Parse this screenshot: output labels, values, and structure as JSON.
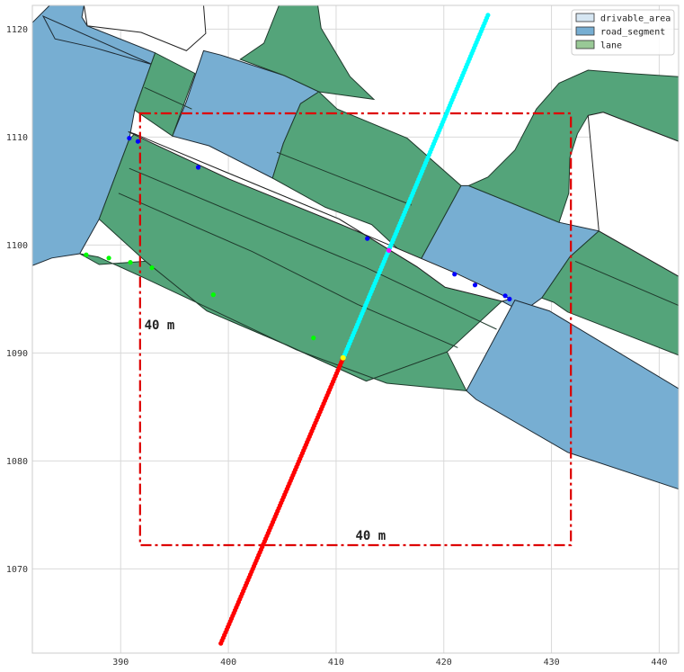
{
  "chart_data": {
    "type": "scatter",
    "title": "",
    "xlabel": "",
    "ylabel": "",
    "xlim": [
      381.8,
      441.8
    ],
    "ylim": [
      1062.2,
      1122.2
    ],
    "grid": true,
    "legend_position": "top-right",
    "x_ticks": [
      390,
      400,
      410,
      420,
      430,
      440
    ],
    "y_ticks": [
      1070,
      1080,
      1090,
      1100,
      1110,
      1120
    ],
    "legend": [
      {
        "label": "drivable_area",
        "color": "#d6e6f2"
      },
      {
        "label": "road_segment",
        "color": "#77aed2"
      },
      {
        "label": "lane",
        "color": "#99c996"
      }
    ],
    "colors": {
      "road_segment": "#77aed2",
      "lane": "#54a47a",
      "lane_edge": "#1f3a2c",
      "box": "#dd0000",
      "future": "#ff0000",
      "past": "#00ffff",
      "current": "#ffff00",
      "blue_points": "#0000ff",
      "green_points": "#00ff00",
      "magenta_points": "#ff00ff"
    },
    "regions": {
      "road_segment": [
        [
          [
            381.8,
            1120.6
          ],
          [
            383.4,
            1122.2
          ],
          [
            386.6,
            1122.2
          ],
          [
            386.4,
            1121.1
          ],
          [
            386.9,
            1120.3
          ],
          [
            393.2,
            1117.8
          ],
          [
            391.3,
            1112.5
          ],
          [
            390.8,
            1109.8
          ],
          [
            388.0,
            1102.4
          ],
          [
            386.2,
            1099.2
          ],
          [
            383.6,
            1098.8
          ],
          [
            381.8,
            1098.1
          ]
        ],
        [
          [
            397.7,
            1118.0
          ],
          [
            399.3,
            1117.6
          ],
          [
            405.2,
            1115.7
          ],
          [
            408.4,
            1114.2
          ],
          [
            406.7,
            1113.1
          ],
          [
            405.1,
            1109.4
          ],
          [
            404.1,
            1106.2
          ],
          [
            398.2,
            1109.2
          ],
          [
            394.8,
            1110.1
          ],
          [
            396.1,
            1113.3
          ]
        ],
        [
          [
            421.6,
            1105.5
          ],
          [
            422.3,
            1105.5
          ],
          [
            430.7,
            1102.1
          ],
          [
            434.4,
            1101.3
          ],
          [
            431.7,
            1098.9
          ],
          [
            429.1,
            1095.1
          ],
          [
            427.3,
            1093.8
          ],
          [
            425.4,
            1094.8
          ],
          [
            420.1,
            1096.1
          ],
          [
            417.5,
            1098.0
          ]
        ],
        [
          [
            426.6,
            1094.9
          ],
          [
            429.8,
            1093.9
          ],
          [
            441.8,
            1086.7
          ],
          [
            441.8,
            1077.4
          ],
          [
            431.5,
            1080.8
          ],
          [
            423.0,
            1085.7
          ],
          [
            422.1,
            1086.5
          ]
        ],
        [
          [
            393.0,
            1116.7
          ],
          [
            387.5,
            1118.3
          ],
          [
            383.9,
            1119.1
          ],
          [
            382.8,
            1121.2
          ]
        ]
      ],
      "lane": [
        [
          [
            391.3,
            1112.5
          ],
          [
            393.2,
            1117.8
          ],
          [
            396.9,
            1115.9
          ],
          [
            394.8,
            1110.1
          ]
        ],
        [
          [
            404.7,
            1122.2
          ],
          [
            408.3,
            1122.2
          ],
          [
            408.6,
            1120.1
          ],
          [
            411.3,
            1115.6
          ],
          [
            413.5,
            1113.5
          ],
          [
            408.4,
            1114.2
          ],
          [
            405.2,
            1115.7
          ],
          [
            401.1,
            1117.2
          ],
          [
            403.3,
            1118.7
          ]
        ],
        [
          [
            408.4,
            1114.2
          ],
          [
            410.1,
            1112.6
          ],
          [
            416.6,
            1109.9
          ],
          [
            421.6,
            1105.5
          ],
          [
            417.5,
            1098.0
          ],
          [
            413.3,
            1101.9
          ],
          [
            409.0,
            1103.5
          ],
          [
            404.1,
            1106.2
          ],
          [
            405.1,
            1109.4
          ],
          [
            406.7,
            1113.1
          ]
        ],
        [
          [
            390.8,
            1109.8
          ],
          [
            391.3,
            1110.3
          ],
          [
            392.7,
            1109.6
          ],
          [
            399.9,
            1106.7
          ],
          [
            410.3,
            1102.4
          ],
          [
            417.5,
            1098.0
          ],
          [
            420.1,
            1096.1
          ],
          [
            425.4,
            1094.8
          ],
          [
            420.3,
            1090.1
          ],
          [
            412.8,
            1087.4
          ],
          [
            405.5,
            1090.7
          ],
          [
            398.0,
            1093.9
          ],
          [
            392.3,
            1098.5
          ],
          [
            388.0,
            1102.4
          ]
        ],
        [
          [
            386.2,
            1099.2
          ],
          [
            388.0,
            1098.2
          ],
          [
            392.3,
            1098.5
          ],
          [
            398.0,
            1093.9
          ],
          [
            405.5,
            1090.7
          ],
          [
            412.8,
            1087.4
          ],
          [
            420.3,
            1090.1
          ],
          [
            422.1,
            1086.5
          ],
          [
            414.7,
            1087.2
          ],
          [
            406.3,
            1090.3
          ],
          [
            398.7,
            1093.9
          ],
          [
            392.1,
            1097.0
          ],
          [
            387.9,
            1098.9
          ]
        ],
        [
          [
            422.3,
            1105.5
          ],
          [
            424.1,
            1106.3
          ],
          [
            426.6,
            1108.8
          ],
          [
            428.6,
            1112.6
          ],
          [
            430.7,
            1115.0
          ],
          [
            433.4,
            1116.2
          ],
          [
            437.2,
            1115.9
          ],
          [
            441.8,
            1115.6
          ],
          [
            441.8,
            1109.6
          ],
          [
            434.8,
            1112.3
          ],
          [
            433.4,
            1112.0
          ],
          [
            432.4,
            1110.3
          ],
          [
            431.7,
            1108.1
          ],
          [
            431.6,
            1104.8
          ],
          [
            430.7,
            1102.1
          ]
        ],
        [
          [
            434.4,
            1101.3
          ],
          [
            441.8,
            1097.1
          ],
          [
            441.8,
            1089.8
          ],
          [
            431.5,
            1093.8
          ],
          [
            430.2,
            1094.7
          ],
          [
            429.1,
            1095.1
          ],
          [
            431.7,
            1098.9
          ]
        ]
      ],
      "white_gaps": [
        [
          [
            390.7,
            1110.5
          ],
          [
            391.3,
            1110.3
          ],
          [
            399.9,
            1106.7
          ],
          [
            410.3,
            1102.4
          ],
          [
            417.5,
            1098.0
          ],
          [
            420.1,
            1096.1
          ],
          [
            425.4,
            1094.8
          ],
          [
            426.2,
            1095.0
          ],
          [
            421.1,
            1097.4
          ],
          [
            410.7,
            1101.8
          ],
          [
            400.1,
            1106.1
          ],
          [
            392.8,
            1109.5
          ]
        ],
        [
          [
            434.4,
            1101.3
          ],
          [
            433.4,
            1112.0
          ],
          [
            434.8,
            1112.3
          ],
          [
            441.8,
            1109.6
          ],
          [
            441.8,
            1097.1
          ]
        ],
        [
          [
            386.6,
            1122.2
          ],
          [
            397.7,
            1122.2
          ],
          [
            397.9,
            1119.6
          ],
          [
            396.1,
            1118.0
          ],
          [
            391.9,
            1119.7
          ],
          [
            386.9,
            1120.3
          ]
        ]
      ],
      "lane_dividers": [
        [
          [
            390.8,
            1107.1
          ],
          [
            402.5,
            1102.2
          ],
          [
            412.8,
            1097.9
          ],
          [
            424.9,
            1092.2
          ]
        ],
        [
          [
            389.8,
            1104.8
          ],
          [
            402.2,
            1099.4
          ],
          [
            412.0,
            1094.5
          ],
          [
            421.3,
            1090.5
          ]
        ],
        [
          [
            392.2,
            1114.6
          ],
          [
            396.6,
            1112.6
          ]
        ],
        [
          [
            404.5,
            1108.6
          ],
          [
            417.0,
            1103.7
          ]
        ],
        [
          [
            432.2,
            1098.5
          ],
          [
            441.8,
            1094.4
          ]
        ]
      ]
    },
    "box": {
      "x": [
        391.8,
        431.8
      ],
      "y": [
        1072.2,
        1112.2
      ]
    },
    "box_annotations": [
      {
        "text": "40 m",
        "x": 392.2,
        "y": 1092.2
      },
      {
        "text": "40 m",
        "x": 411.8,
        "y": 1072.7
      }
    ],
    "past_trajectory": {
      "start": [
        410.7,
        1089.6
      ],
      "end": [
        424.1,
        1121.3
      ],
      "count": 126,
      "label": ""
    },
    "future_trajectory": {
      "start": [
        399.3,
        1063.1
      ],
      "end": [
        410.6,
        1089.4
      ],
      "count": 104,
      "label": ""
    },
    "current_position": [
      410.65,
      1089.55
    ],
    "blue_points": {
      "x": [
        390.8,
        391.6,
        397.2,
        412.9,
        421.0,
        422.9,
        425.7,
        426.1
      ],
      "y": [
        1109.9,
        1109.6,
        1107.2,
        1100.6,
        1097.3,
        1096.3,
        1095.3,
        1095.0
      ]
    },
    "green_points": {
      "x": [
        386.8,
        388.9,
        390.9,
        392.9,
        398.6,
        407.9
      ],
      "y": [
        1099.1,
        1098.8,
        1098.4,
        1097.9,
        1095.4,
        1091.4
      ]
    },
    "magenta_points": {
      "x": [
        414.9
      ],
      "y": [
        1099.5
      ]
    }
  }
}
